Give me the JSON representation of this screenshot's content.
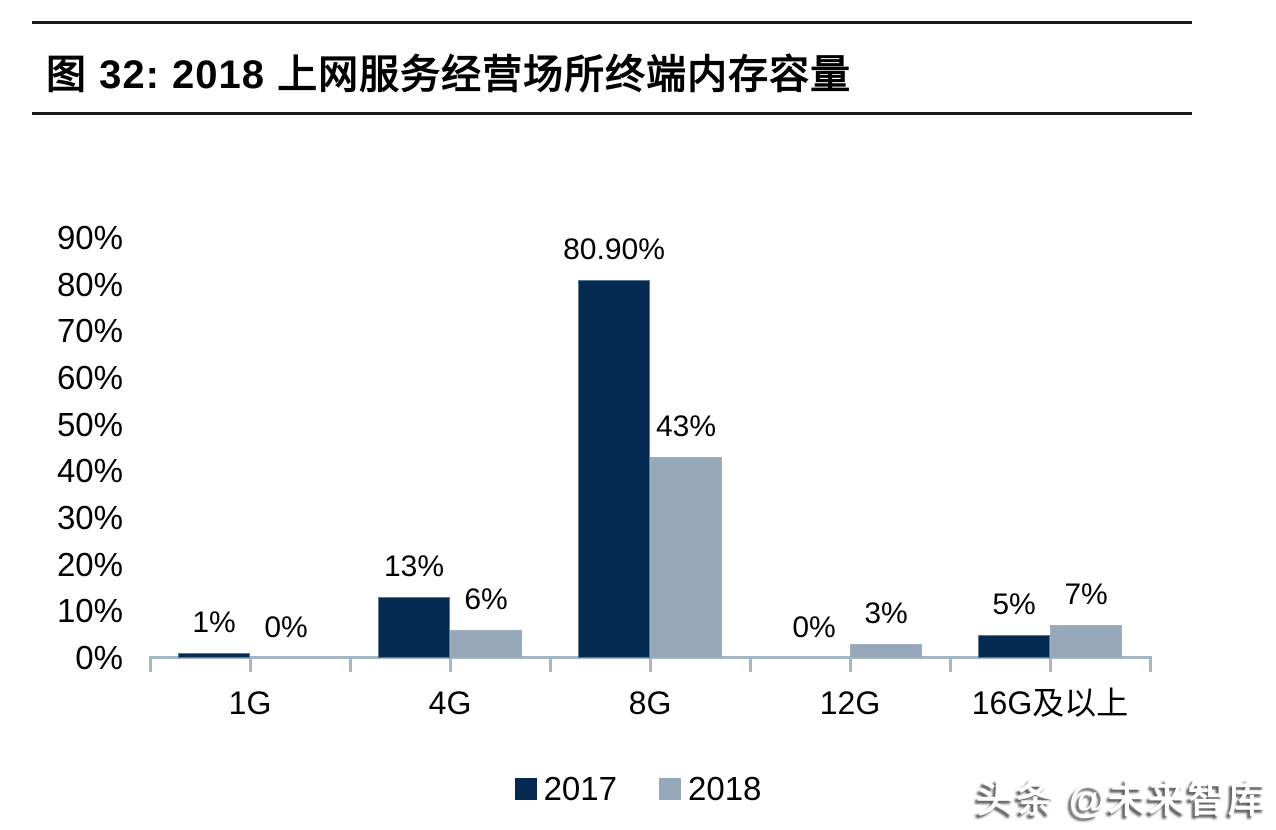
{
  "figure": {
    "title": "图 32:  2018 上网服务经营场所终端内存容量"
  },
  "chart_data": {
    "type": "bar",
    "title": "2018 上网服务经营场所终端内存容量",
    "categories": [
      "1G",
      "4G",
      "8G",
      "12G",
      "16G及以上"
    ],
    "series": [
      {
        "name": "2017",
        "color": "#052a52",
        "values": [
          1,
          13,
          80.9,
          0,
          5
        ],
        "labels": [
          "1%",
          "13%",
          "80.90%",
          "0%",
          "5%"
        ]
      },
      {
        "name": "2018",
        "color": "#96a8b9",
        "values": [
          0,
          6,
          43,
          3,
          7
        ],
        "labels": [
          "0%",
          "6%",
          "43%",
          "3%",
          "7%"
        ]
      }
    ],
    "xlabel": "",
    "ylabel": "",
    "ylim": [
      0,
      90
    ],
    "yticks": [
      0,
      10,
      20,
      30,
      40,
      50,
      60,
      70,
      80,
      90
    ],
    "ytick_suffix": "%",
    "grid": false,
    "legend_position": "bottom",
    "axis_color": "#a6b7c4"
  },
  "watermark": {
    "text": "头条 @未来智库"
  }
}
